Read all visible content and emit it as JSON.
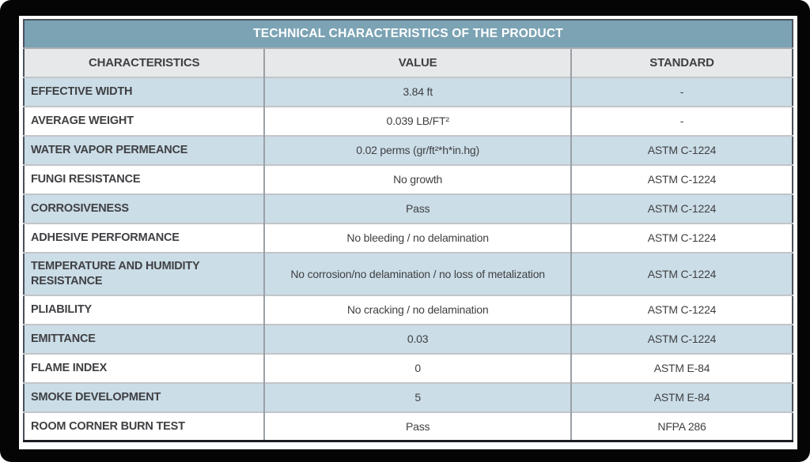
{
  "table": {
    "title": "TECHNICAL CHARACTERISTICS OF THE PRODUCT",
    "columns": [
      "CHARACTERISTICS",
      "VALUE",
      "STANDARD"
    ],
    "rows": [
      {
        "characteristic": "EFFECTIVE WIDTH",
        "value": "3.84 ft",
        "standard": "-"
      },
      {
        "characteristic": "AVERAGE WEIGHT",
        "value": "0.039 LB/FT²",
        "standard": "-"
      },
      {
        "characteristic": "WATER VAPOR PERMEANCE",
        "value": "0.02 perms (gr/ft²*h*in.hg)",
        "standard": "ASTM C-1224"
      },
      {
        "characteristic": "FUNGI RESISTANCE",
        "value": "No growth",
        "standard": "ASTM C-1224"
      },
      {
        "characteristic": "CORROSIVENESS",
        "value": "Pass",
        "standard": "ASTM C-1224"
      },
      {
        "characteristic": "ADHESIVE PERFORMANCE",
        "value": "No bleeding / no delamination",
        "standard": "ASTM C-1224"
      },
      {
        "characteristic": "TEMPERATURE AND HUMIDITY RESISTANCE",
        "value": "No corrosion/no delamination / no loss of metalization",
        "standard": "ASTM C-1224"
      },
      {
        "characteristic": "PLIABILITY",
        "value": "No cracking / no delamination",
        "standard": "ASTM C-1224"
      },
      {
        "characteristic": "EMITTANCE",
        "value": "0.03",
        "standard": "ASTM C-1224"
      },
      {
        "characteristic": "FLAME INDEX",
        "value": "0",
        "standard": "ASTM E-84"
      },
      {
        "characteristic": "SMOKE DEVELOPMENT",
        "value": "5",
        "standard": "ASTM E-84"
      },
      {
        "characteristic": "ROOM CORNER BURN TEST",
        "value": "Pass",
        "standard": "NFPA 286"
      }
    ]
  },
  "colors": {
    "title_bar": "#7ba3b4",
    "title_text": "#ffffff",
    "header_row": "#e7e8ea",
    "row_alt_blue": "#cbdde7",
    "row_white": "#ffffff",
    "text_dark": "#3f4043",
    "divider_vertical": "#9aa0a6",
    "divider_horizontal": "#c2c5c8",
    "outer_border": "#4a515c",
    "frame_background": "#050505"
  }
}
